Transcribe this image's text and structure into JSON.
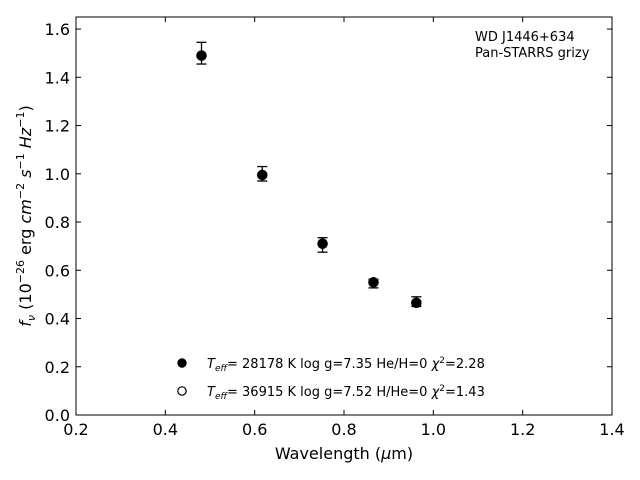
{
  "chart_data": {
    "type": "scatter",
    "annotation": [
      "WD J1446+634",
      "Pan-STARRS grizy"
    ],
    "xlabel": {
      "prefix": "Wavelength (",
      "mu": "μ",
      "suffix": "m)"
    },
    "ylabel": {
      "f": "f",
      "nu": "ν",
      "open": " (10",
      "exp26": "−26",
      "mid": " erg ",
      "cm": "cm",
      "expm2": "−2",
      "s": " s",
      "expm1a": "−1",
      "hz": " Hz",
      "expm1b": "−1",
      "close": ")"
    },
    "xlim": [
      0.2,
      1.4
    ],
    "ylim": [
      0.0,
      1.65
    ],
    "xticks": [
      0.2,
      0.4,
      0.6,
      0.8,
      1.0,
      1.2,
      1.4
    ],
    "xtick_labels": [
      "0.2",
      "0.4",
      "0.6",
      "0.8",
      "1.0",
      "1.2",
      "1.4"
    ],
    "yticks": [
      0.0,
      0.2,
      0.4,
      0.6,
      0.8,
      1.0,
      1.2,
      1.4,
      1.6
    ],
    "ytick_labels": [
      "0.0",
      "0.2",
      "0.4",
      "0.6",
      "0.8",
      "1.0",
      "1.2",
      "1.4",
      "1.6"
    ],
    "grid": false,
    "legend_placement": "lower-center",
    "observed": {
      "x": [
        0.481,
        0.617,
        0.752,
        0.866,
        0.962
      ],
      "y": [
        1.5,
        1.0,
        0.705,
        0.545,
        0.47
      ],
      "yerr": [
        0.045,
        0.03,
        0.03,
        0.018,
        0.02
      ]
    },
    "series": [
      {
        "marker": "filled",
        "x": [
          0.481,
          0.617,
          0.752,
          0.866,
          0.962
        ],
        "y": [
          1.49,
          0.995,
          0.71,
          0.55,
          0.465
        ],
        "label": {
          "t": "T",
          "sub": "eff",
          "rest": "= 28178 K  log g=7.35  He/H=0  ",
          "chi": "χ",
          "sup": "2",
          "chiv": "=2.28"
        }
      },
      {
        "marker": "open",
        "x": [
          0.481,
          0.617,
          0.752,
          0.866,
          0.962
        ],
        "y": [
          1.49,
          0.995,
          0.71,
          0.55,
          0.465
        ],
        "label": {
          "t": "T",
          "sub": "eff",
          "rest": "= 36915 K  log g=7.52  H/He=0  ",
          "chi": "χ",
          "sup": "2",
          "chiv": "=1.43"
        }
      }
    ]
  }
}
